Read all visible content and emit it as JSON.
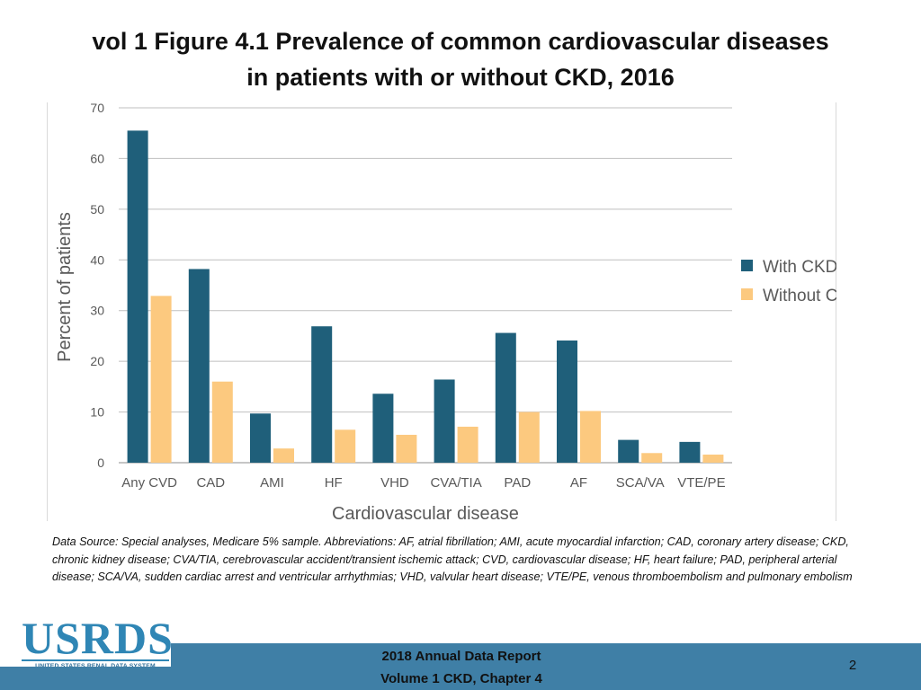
{
  "slide": {
    "title_line1": "vol 1 Figure 4.1 Prevalence of common cardiovascular diseases",
    "title_line2": "in patients with or without CKD, 2016"
  },
  "chart_data": {
    "type": "bar",
    "title": "",
    "xlabel": "Cardiovascular disease",
    "ylabel": "Percent of patients",
    "ylim": [
      0,
      70
    ],
    "yticks": [
      0,
      10,
      20,
      30,
      40,
      50,
      60,
      70
    ],
    "grid": true,
    "legend_position": "right",
    "categories": [
      "Any CVD",
      "CAD",
      "AMI",
      "HF",
      "VHD",
      "CVA/TIA",
      "PAD",
      "AF",
      "SCA/VA",
      "VTE/PE"
    ],
    "series": [
      {
        "name": "With CKD",
        "color": "#1f5f7a",
        "values": [
          65.5,
          38.2,
          9.7,
          26.9,
          13.6,
          16.4,
          25.6,
          24.1,
          4.5,
          4.1
        ]
      },
      {
        "name": "Without CKD",
        "color": "#fcc97f",
        "values": [
          32.9,
          16.0,
          2.8,
          6.5,
          5.5,
          7.1,
          10.0,
          10.2,
          1.9,
          1.6
        ]
      }
    ]
  },
  "footnote": "Data Source: Special analyses, Medicare 5% sample. Abbreviations: AF, atrial fibrillation; AMI, acute myocardial infarction; CAD, coronary artery disease; CKD, chronic kidney disease; CVA/TIA, cerebrovascular accident/transient ischemic attack; CVD, cardiovascular disease; HF, heart failure; PAD, peripheral arterial disease; SCA/VA, sudden cardiac arrest and ventricular arrhythmias; VHD, valvular heart disease; VTE/PE, venous thromboembolism and pulmonary embolism",
  "logo": {
    "main": "USRDS",
    "sub": "UNITED STATES RENAL DATA SYSTEM"
  },
  "footer": {
    "report_line1": "2018 Annual Data Report",
    "report_line2": "Volume 1 CKD, Chapter 4",
    "page_number": "2"
  }
}
